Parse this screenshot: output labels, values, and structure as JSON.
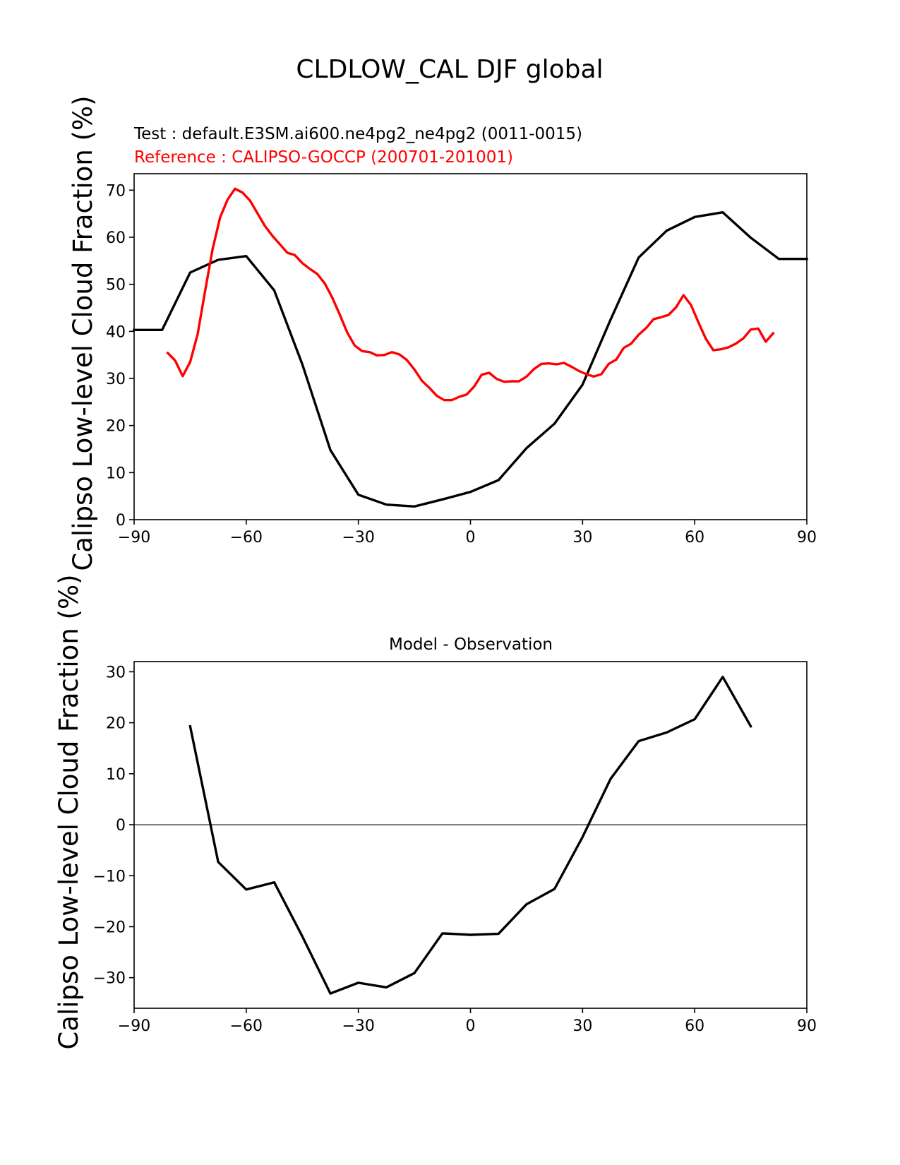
{
  "figure": {
    "suptitle": "CLDLOW_CAL DJF global"
  },
  "chart_data": [
    {
      "type": "line",
      "title": "",
      "test_label": "Test : default.E3SM.ai600.ne4pg2_ne4pg2 (0011-0015)",
      "reference_label": "Reference : CALIPSO-GOCCP (200701-201001)",
      "ylabel": "Calipso Low-level Cloud Fraction (%)",
      "xlabel": "",
      "xlim": [
        -90,
        90
      ],
      "ylim": [
        0,
        73.5
      ],
      "xticks": [
        "−90",
        "−60",
        "−30",
        "0",
        "30",
        "60",
        "90"
      ],
      "xtick_values": [
        -90,
        -60,
        -30,
        0,
        30,
        60,
        90
      ],
      "yticks": [
        "0",
        "10",
        "20",
        "30",
        "40",
        "50",
        "60",
        "70"
      ],
      "ytick_values": [
        0,
        10,
        20,
        30,
        40,
        50,
        60,
        70
      ],
      "grid": false,
      "series": [
        {
          "color": "#000000",
          "x": [
            -90,
            -82.5,
            -75,
            -67.5,
            -60,
            -52.5,
            -45,
            -37.5,
            -30,
            -22.5,
            -15,
            -7.5,
            0,
            7.5,
            15,
            22.5,
            30,
            37.5,
            45,
            52.5,
            60,
            67.5,
            75,
            82.5,
            90
          ],
          "values": [
            40.3,
            40.3,
            52.5,
            55.2,
            56.0,
            48.7,
            33.0,
            14.8,
            5.3,
            3.2,
            2.8,
            4.3,
            5.9,
            8.4,
            15.2,
            20.4,
            28.7,
            42.5,
            55.7,
            61.4,
            64.3,
            65.3,
            59.9,
            55.4,
            55.4
          ]
        },
        {
          "color": "#ff0000",
          "x": [
            -81,
            -79,
            -77,
            -75,
            -73,
            -71,
            -69,
            -67,
            -65,
            -63,
            -61,
            -59,
            -57,
            -55,
            -53,
            -51,
            -49,
            -47,
            -45,
            -43,
            -41,
            -39,
            -37,
            -35,
            -33,
            -31,
            -29,
            -27,
            -25,
            -23,
            -21,
            -19,
            -17,
            -15,
            -13,
            -11,
            -9,
            -7,
            -5,
            -3,
            -1,
            1,
            3,
            5,
            7,
            9,
            11,
            13,
            15,
            17,
            19,
            21,
            23,
            25,
            27,
            29,
            31,
            33,
            35,
            37,
            39,
            41,
            43,
            45,
            47,
            49,
            51,
            53,
            55,
            57,
            59,
            61,
            63,
            65,
            67,
            69,
            71,
            73,
            75,
            77,
            79,
            81
          ],
          "values": [
            35.4,
            33.8,
            30.5,
            33.5,
            39.4,
            48.6,
            57.5,
            64.2,
            68.0,
            70.3,
            69.5,
            67.8,
            65.1,
            62.4,
            60.3,
            58.5,
            56.7,
            56.2,
            54.5,
            53.3,
            52.2,
            50.2,
            47.2,
            43.6,
            39.8,
            37.0,
            35.8,
            35.6,
            34.9,
            35.0,
            35.6,
            35.1,
            33.9,
            31.9,
            29.5,
            28.0,
            26.3,
            25.4,
            25.4,
            26.1,
            26.6,
            28.3,
            30.8,
            31.2,
            29.9,
            29.3,
            29.4,
            29.4,
            30.4,
            32.0,
            33.1,
            33.2,
            33.0,
            33.3,
            32.5,
            31.6,
            30.9,
            30.4,
            30.9,
            33.1,
            34.0,
            36.5,
            37.4,
            39.3,
            40.7,
            42.6,
            43.0,
            43.5,
            45.1,
            47.7,
            45.6,
            41.9,
            38.4,
            36.0,
            36.2,
            36.6,
            37.4,
            38.5,
            40.4,
            40.6,
            37.8,
            39.6
          ]
        }
      ]
    },
    {
      "type": "line",
      "title": "Model - Observation",
      "ylabel": "Calipso Low-level Cloud Fraction (%)",
      "xlabel": "",
      "xlim": [
        -90,
        90
      ],
      "ylim": [
        -36,
        32
      ],
      "xticks": [
        "−90",
        "−60",
        "−30",
        "0",
        "30",
        "60",
        "90"
      ],
      "xtick_values": [
        -90,
        -60,
        -30,
        0,
        30,
        60,
        90
      ],
      "yticks": [
        "−30",
        "−20",
        "−10",
        "0",
        "10",
        "20",
        "30"
      ],
      "ytick_values": [
        -30,
        -20,
        -10,
        0,
        10,
        20,
        30
      ],
      "grid": false,
      "zero_line_color": "#808080",
      "series": [
        {
          "color": "#000000",
          "x": [
            -75,
            -67.5,
            -60,
            -52.5,
            -45,
            -37.5,
            -30,
            -22.5,
            -15,
            -7.5,
            0,
            7.5,
            15,
            22.5,
            30,
            37.5,
            45,
            52.5,
            60,
            67.5,
            75
          ],
          "values": [
            19.3,
            -7.3,
            -12.7,
            -11.3,
            -21.9,
            -33.1,
            -31.0,
            -31.9,
            -29.1,
            -21.3,
            -21.6,
            -21.4,
            -15.6,
            -12.6,
            -2.4,
            9.0,
            16.4,
            18.1,
            20.7,
            29.0,
            19.3
          ]
        }
      ]
    }
  ]
}
